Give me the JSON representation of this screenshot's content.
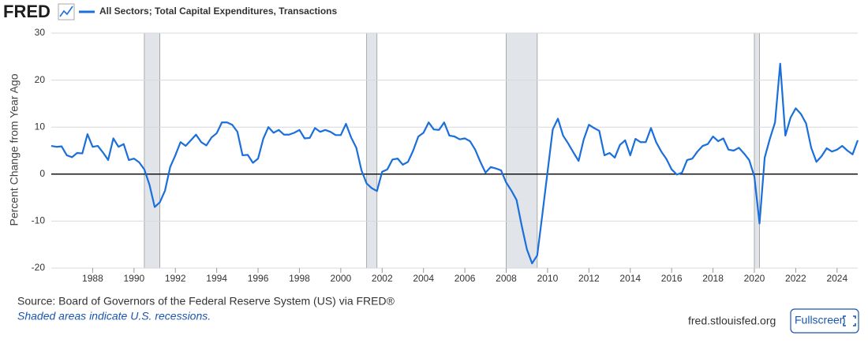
{
  "page": {
    "logo": "FRED",
    "source": "Source: Board of Governors of the Federal Reserve System (US) via FRED®",
    "note": "Shaded areas indicate U.S. recessions.",
    "site": "fred.stlouisfed.org",
    "button": "Fullscreen"
  },
  "chart_data": {
    "type": "line",
    "ylabel": "Percent Change from Year Ago",
    "x": [
      1986,
      1986.25,
      1986.5,
      1986.75,
      1987,
      1987.25,
      1987.5,
      1987.75,
      1988,
      1988.25,
      1988.5,
      1988.75,
      1989,
      1989.25,
      1989.5,
      1989.75,
      1990,
      1990.25,
      1990.5,
      1990.75,
      1991,
      1991.25,
      1991.5,
      1991.75,
      1992,
      1992.25,
      1992.5,
      1992.75,
      1993,
      1993.25,
      1993.5,
      1993.75,
      1994,
      1994.25,
      1994.5,
      1994.75,
      1995,
      1995.25,
      1995.5,
      1995.75,
      1996,
      1996.25,
      1996.5,
      1996.75,
      1997,
      1997.25,
      1997.5,
      1997.75,
      1998,
      1998.25,
      1998.5,
      1998.75,
      1999,
      1999.25,
      1999.5,
      1999.75,
      2000,
      2000.25,
      2000.5,
      2000.75,
      2001,
      2001.25,
      2001.5,
      2001.75,
      2002,
      2002.25,
      2002.5,
      2002.75,
      2003,
      2003.25,
      2003.5,
      2003.75,
      2004,
      2004.25,
      2004.5,
      2004.75,
      2005,
      2005.25,
      2005.5,
      2005.75,
      2006,
      2006.25,
      2006.5,
      2006.75,
      2007,
      2007.25,
      2007.5,
      2007.75,
      2008,
      2008.25,
      2008.5,
      2008.75,
      2009,
      2009.25,
      2009.5,
      2009.75,
      2010,
      2010.25,
      2010.5,
      2010.75,
      2011,
      2011.25,
      2011.5,
      2011.75,
      2012,
      2012.25,
      2012.5,
      2012.75,
      2013,
      2013.25,
      2013.5,
      2013.75,
      2014,
      2014.25,
      2014.5,
      2014.75,
      2015,
      2015.25,
      2015.5,
      2015.75,
      2016,
      2016.25,
      2016.5,
      2016.75,
      2017,
      2017.25,
      2017.5,
      2017.75,
      2018,
      2018.25,
      2018.5,
      2018.75,
      2019,
      2019.25,
      2019.5,
      2019.75,
      2020,
      2020.25,
      2020.5,
      2020.75,
      2021,
      2021.25,
      2021.5,
      2021.75,
      2022,
      2022.25,
      2022.5,
      2022.75,
      2023,
      2023.25,
      2023.5,
      2023.75,
      2024,
      2024.25,
      2024.5,
      2024.75,
      2025
    ],
    "series": [
      {
        "name": "All Sectors; Total Capital Expenditures, Transactions",
        "color": "#1a6fdb",
        "values": [
          6.0,
          5.8,
          5.9,
          4.0,
          3.6,
          4.5,
          4.4,
          8.5,
          5.8,
          6.0,
          4.6,
          3.0,
          7.6,
          5.8,
          6.4,
          3.0,
          3.3,
          2.5,
          1.0,
          -2.3,
          -7.0,
          -6.0,
          -3.5,
          1.5,
          4.0,
          6.8,
          6.0,
          7.2,
          8.4,
          6.8,
          6.1,
          7.8,
          8.7,
          11.0,
          11.0,
          10.5,
          9.0,
          4.0,
          4.1,
          2.4,
          3.3,
          7.5,
          10.0,
          8.8,
          9.4,
          8.4,
          8.4,
          8.8,
          9.4,
          7.6,
          7.7,
          9.8,
          9.0,
          9.4,
          9.0,
          8.3,
          8.3,
          10.7,
          7.8,
          5.6,
          0.8,
          -2.0,
          -3.0,
          -3.6,
          0.5,
          1.0,
          3.1,
          3.3,
          2.0,
          2.6,
          5.0,
          8.0,
          8.8,
          11.0,
          9.5,
          9.4,
          11.0,
          8.2,
          8.0,
          7.4,
          7.6,
          7.0,
          5.2,
          2.6,
          0.3,
          1.5,
          1.2,
          0.8,
          -1.8,
          -3.5,
          -5.5,
          -11.0,
          -16.0,
          -19.0,
          -17.3,
          -8.5,
          0.5,
          9.5,
          11.8,
          8.2,
          6.5,
          4.6,
          2.8,
          7.4,
          10.5,
          9.8,
          9.2,
          4.0,
          4.5,
          3.5,
          6.2,
          7.2,
          4.0,
          7.5,
          6.8,
          6.8,
          9.8,
          6.8,
          4.8,
          3.2,
          1.0,
          -0.1,
          0.3,
          3.0,
          3.3,
          4.8,
          6.0,
          6.4,
          8.0,
          7.0,
          7.6,
          5.2,
          5.0,
          5.6,
          4.4,
          3.0,
          -0.5,
          -10.5,
          3.5,
          7.5,
          11.0,
          23.5,
          8.2,
          12.0,
          14.0,
          12.8,
          10.8,
          5.6,
          2.6,
          3.8,
          5.5,
          4.8,
          5.2,
          6.0,
          5.0,
          4.2,
          7.2
        ]
      }
    ],
    "recessions": [
      [
        1990.5,
        1991.25
      ],
      [
        2001.25,
        2001.75
      ],
      [
        2008,
        2009.5
      ],
      [
        2020,
        2020.25
      ]
    ],
    "xlim": [
      1986,
      2025
    ],
    "ylim": [
      -20,
      30
    ],
    "xticks": [
      1988,
      1990,
      1992,
      1994,
      1996,
      1998,
      2000,
      2002,
      2004,
      2006,
      2008,
      2010,
      2012,
      2014,
      2016,
      2018,
      2020,
      2022,
      2024
    ],
    "yticks": [
      -20,
      -10,
      0,
      10,
      20,
      30
    ],
    "grid": true,
    "zero_line": true
  }
}
